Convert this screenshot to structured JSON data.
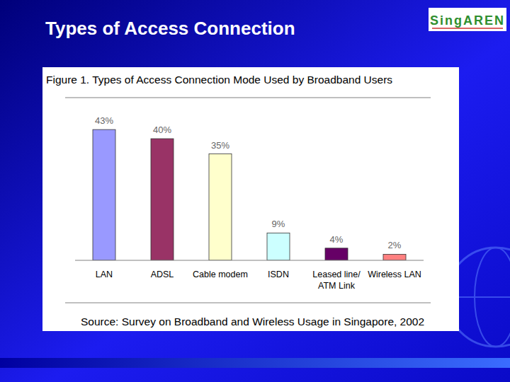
{
  "slide": {
    "title": "Types of Access Connection",
    "logo": "SingAREN"
  },
  "chart_data": {
    "type": "bar",
    "title": "Figure 1. Types of Access Connection Mode Used by Broadband Users",
    "source": "Source: Survey on Broadband and Wireless Usage in Singapore, 2002",
    "categories": [
      "LAN",
      "ADSL",
      "Cable modem",
      "ISDN",
      "Leased line/ ATM Link",
      "Wireless LAN"
    ],
    "values": [
      43,
      40,
      35,
      9,
      4,
      2
    ],
    "value_labels": [
      "43%",
      "40%",
      "35%",
      "9%",
      "4%",
      "2%"
    ],
    "colors": [
      "#9999ff",
      "#993366",
      "#ffffcc",
      "#ccffff",
      "#660066",
      "#ff8080"
    ],
    "ylim": [
      0,
      53.5
    ],
    "data_labels": true,
    "tick_labels": "x",
    "grid": false
  }
}
